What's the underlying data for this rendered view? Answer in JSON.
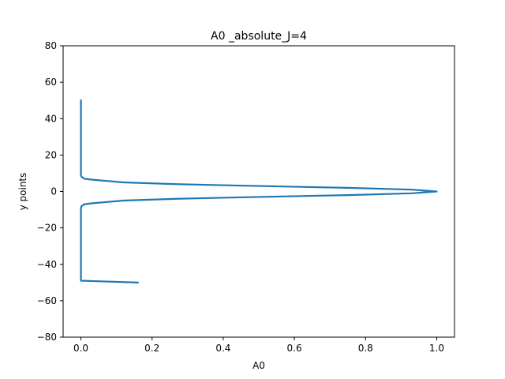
{
  "chart_data": {
    "type": "line",
    "title": "A0 _absolute_J=4",
    "xlabel": "A0",
    "ylabel": "y points",
    "xlim": [
      -0.05,
      1.05
    ],
    "ylim": [
      -80,
      80
    ],
    "x_ticks": [
      0.0,
      0.2,
      0.4,
      0.6,
      0.8,
      1.0
    ],
    "x_tick_labels": [
      "0.0",
      "0.2",
      "0.4",
      "0.6",
      "0.8",
      "1.0"
    ],
    "y_ticks": [
      -80,
      -60,
      -40,
      -20,
      0,
      20,
      40,
      60,
      80
    ],
    "y_tick_labels": [
      "−80",
      "−60",
      "−40",
      "−20",
      "0",
      "20",
      "40",
      "60",
      "80"
    ],
    "grid": false,
    "series": [
      {
        "color": "#1f77b4",
        "x": [
          0.0,
          0.0,
          0.0,
          0.0,
          0.0,
          0.002,
          0.01,
          0.03,
          0.06,
          0.12,
          0.27,
          0.5,
          0.75,
          0.93,
          1.0,
          0.93,
          0.75,
          0.5,
          0.27,
          0.12,
          0.06,
          0.03,
          0.01,
          0.002,
          0.0,
          0.0,
          0.0,
          0.0,
          0.16
        ],
        "y": [
          50,
          30,
          15,
          10,
          9,
          8,
          7,
          6.5,
          6,
          5,
          4,
          3,
          2,
          1,
          0,
          -1,
          -2,
          -3,
          -4,
          -5,
          -6,
          -6.5,
          -7,
          -8,
          -9,
          -10,
          -30,
          -49,
          -50
        ]
      }
    ]
  }
}
